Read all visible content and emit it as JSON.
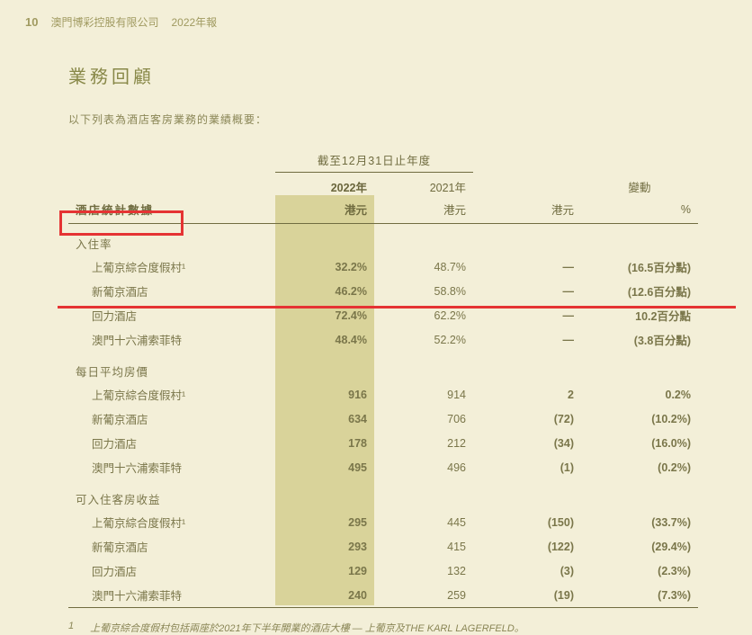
{
  "header": {
    "page_num": "10",
    "company": "澳門博彩控股有限公司",
    "year_label": "2022年報"
  },
  "section_title": "業務回顧",
  "intro": "以下列表為酒店客房業務的業績概要：",
  "table": {
    "span_header": "截至12月31日止年度",
    "col_2022": "2022年",
    "col_2021": "2021年",
    "col_change": "變動",
    "unit": "港元",
    "pct_unit": "%",
    "row_label": "酒店統計數據",
    "groups": [
      {
        "title": "入住率",
        "rows": [
          {
            "label": "上葡京綜合度假村¹",
            "y22": "32.2%",
            "y21": "48.7%",
            "chg": "—",
            "pct": "(16.5百分點)"
          },
          {
            "label": "新葡京酒店",
            "y22": "46.2%",
            "y21": "58.8%",
            "chg": "—",
            "pct": "(12.6百分點)"
          },
          {
            "label": "回力酒店",
            "y22": "72.4%",
            "y21": "62.2%",
            "chg": "—",
            "pct": "10.2百分點"
          },
          {
            "label": "澳門十六浦索菲特",
            "y22": "48.4%",
            "y21": "52.2%",
            "chg": "—",
            "pct": "(3.8百分點)"
          }
        ]
      },
      {
        "title": "每日平均房價",
        "rows": [
          {
            "label": "上葡京綜合度假村¹",
            "y22": "916",
            "y21": "914",
            "chg": "2",
            "pct": "0.2%"
          },
          {
            "label": "新葡京酒店",
            "y22": "634",
            "y21": "706",
            "chg": "(72)",
            "pct": "(10.2%)"
          },
          {
            "label": "回力酒店",
            "y22": "178",
            "y21": "212",
            "chg": "(34)",
            "pct": "(16.0%)"
          },
          {
            "label": "澳門十六浦索菲特",
            "y22": "495",
            "y21": "496",
            "chg": "(1)",
            "pct": "(0.2%)"
          }
        ]
      },
      {
        "title": "可入住客房收益",
        "rows": [
          {
            "label": "上葡京綜合度假村¹",
            "y22": "295",
            "y21": "445",
            "chg": "(150)",
            "pct": "(33.7%)"
          },
          {
            "label": "新葡京酒店",
            "y22": "293",
            "y21": "415",
            "chg": "(122)",
            "pct": "(29.4%)"
          },
          {
            "label": "回力酒店",
            "y22": "129",
            "y21": "132",
            "chg": "(3)",
            "pct": "(2.3%)"
          },
          {
            "label": "澳門十六浦索菲特",
            "y22": "240",
            "y21": "259",
            "chg": "(19)",
            "pct": "(7.3%)"
          }
        ]
      }
    ]
  },
  "footnote": {
    "num": "1",
    "text": "上葡京綜合度假村包括兩座於2021年下半年開業的酒店大樓 — 上葡京及THE KARL LAGERFELD。"
  },
  "colors": {
    "page_bg": "#f3efd8",
    "highlight_bg": "#d9d39a",
    "text_main": "#7a764a",
    "text_header": "#706c40",
    "accent_red": "#e53333"
  }
}
